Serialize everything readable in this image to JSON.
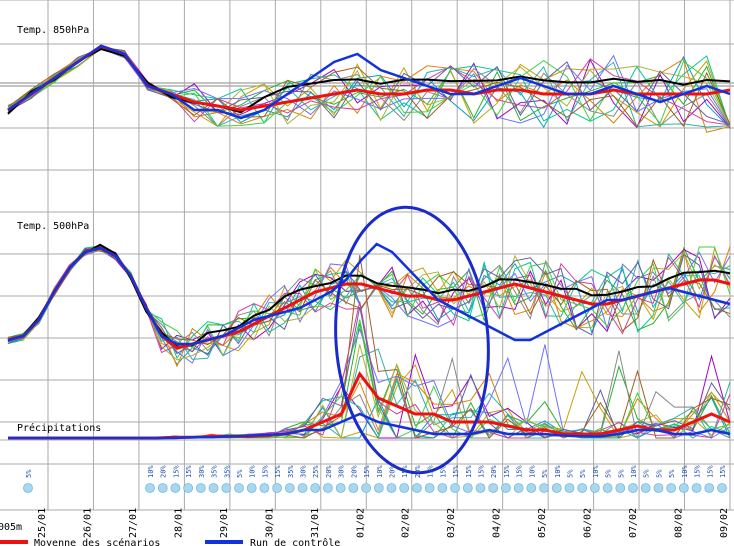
{
  "chart_data": {
    "type": "line",
    "panels": [
      {
        "title": "Temp. 850hPa"
      },
      {
        "title": "Temp. 500hPa"
      },
      {
        "title": "Précipitations"
      }
    ],
    "x_ticks": [
      "25/01",
      "26/01",
      "27/01",
      "28/01",
      "29/01",
      "30/01",
      "31/01",
      "01/02",
      "02/02",
      "03/02",
      "04/02",
      "05/02",
      "06/02",
      "07/02",
      "08/02",
      "09/02"
    ],
    "left_edge_label": "005m",
    "legend": [
      {
        "name": "Moyenne des scénarios",
        "color": "#ee1111"
      },
      {
        "name": "Run de contrôle",
        "color": "#1133dd"
      }
    ],
    "snow_probability": [
      "5%",
      "10%",
      "20%",
      "15%",
      "15%",
      "30%",
      "35%",
      "35%",
      "5%",
      "10%",
      "15%",
      "15%",
      "35%",
      "30%",
      "25%",
      "20%",
      "30%",
      "20%",
      "15%",
      "10%",
      "20%",
      "15%",
      "20%",
      "15%",
      "15%",
      "15%",
      "15%",
      "15%",
      "20%",
      "15%",
      "15%",
      "10%",
      "5%",
      "10%",
      "5%",
      "5%",
      "10%",
      "5%",
      "5%",
      "10%",
      "5%",
      "5%",
      "5%",
      "10%",
      "15%",
      "15%",
      "15%"
    ],
    "series": [
      {
        "name": "Moyenne des scénarios",
        "color": "#ee1111",
        "t850": [
          -3,
          -1,
          1,
          3,
          5,
          4,
          0,
          -1,
          -2,
          -2.5,
          -3,
          -2.5,
          -2,
          -1.5,
          -1,
          -0.5,
          -1,
          -1,
          -0.5,
          -0.5,
          -1,
          -0.5,
          -0.5,
          -1,
          -1,
          -1,
          -0.5,
          -1,
          -1,
          -1,
          -1,
          -0.5
        ],
        "t500": [
          -30,
          -29,
          -25,
          -18,
          -12,
          -8,
          -7,
          -9,
          -14,
          -22,
          -29,
          -32,
          -31,
          -30,
          -29,
          -28,
          -26,
          -24,
          -22,
          -20,
          -18,
          -17,
          -16,
          -16,
          -17,
          -18,
          -19,
          -19,
          -20,
          -20,
          -19,
          -18,
          -17,
          -16,
          -17,
          -18,
          -19,
          -20,
          -21,
          -21,
          -20,
          -19,
          -18,
          -17,
          -16,
          -15,
          -15,
          -16
        ],
        "precip": [
          0,
          0,
          0,
          0,
          0,
          0,
          0,
          0,
          0,
          0.1,
          0.1,
          0.2,
          0.2,
          0.2,
          0.3,
          0.5,
          1,
          2,
          3,
          8,
          5,
          4,
          3,
          3,
          2,
          2,
          2,
          1.5,
          1,
          1,
          0.5,
          0.5,
          0.5,
          1,
          1.5,
          1,
          1,
          2,
          3,
          2
        ]
      },
      {
        "name": "Run de contrôle",
        "color": "#1133dd",
        "t850": [
          -3,
          -1,
          1,
          3,
          5,
          4,
          0,
          -1,
          -3,
          -3,
          -4,
          -3,
          -1,
          1,
          3,
          4,
          2,
          1,
          0,
          -1,
          -1,
          0,
          1,
          0,
          -1,
          -1,
          0,
          -1,
          -2,
          -1,
          0,
          -1
        ],
        "t500": [
          -30,
          -29,
          -25,
          -18,
          -12,
          -8,
          -7,
          -9,
          -14,
          -22,
          -29,
          -31,
          -31,
          -30,
          -29,
          -27,
          -25,
          -24,
          -23,
          -22,
          -20,
          -18,
          -15,
          -10,
          -6,
          -8,
          -12,
          -16,
          -20,
          -22,
          -24,
          -26,
          -28,
          -30,
          -30,
          -28,
          -26,
          -24,
          -22,
          -20,
          -20,
          -19,
          -18,
          -17,
          -18,
          -19,
          -20,
          -21
        ],
        "precip": [
          0,
          0,
          0,
          0,
          0,
          0,
          0,
          0,
          0,
          0,
          0.1,
          0.1,
          0.2,
          0.3,
          0.4,
          0.5,
          1,
          1,
          2,
          3,
          2,
          1.5,
          1,
          0.5,
          0.5,
          0.5,
          1,
          0.5,
          0.5,
          0.5,
          0.3,
          0.2,
          0.2,
          0.5,
          1,
          1,
          0.5,
          0.5,
          1,
          0.5
        ]
      }
    ]
  }
}
